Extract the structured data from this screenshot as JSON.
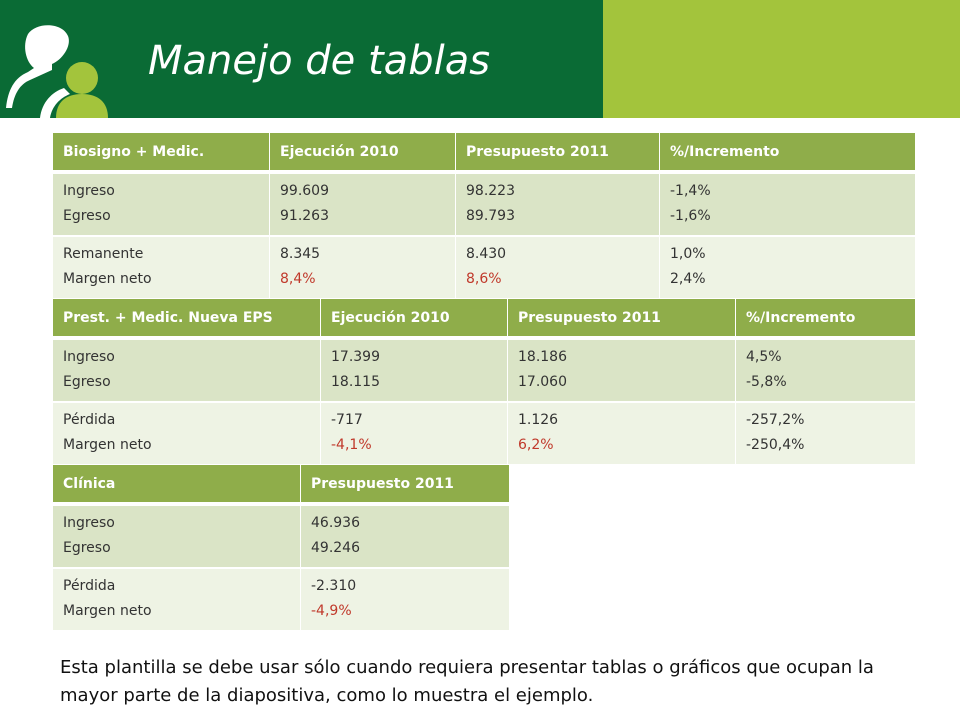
{
  "slide": {
    "title": "Manejo de tablas",
    "footer": "Esta plantilla se debe usar sólo cuando requiera presentar tablas o gráficos que ocupan la mayor parte de la diapositiva, como lo muestra el ejemplo."
  },
  "colors": {
    "header_green": "#0a6b35",
    "accent_green": "#a3c43c",
    "table_header": "#8fad4a",
    "negative_red": "#c0392b"
  },
  "icons": {
    "logo": "people-silhouette-icon"
  },
  "table1": {
    "headers": [
      "Biosigno + Medic.",
      "Ejecución 2010",
      "Presupuesto 2011",
      "%/Incremento"
    ],
    "rows": [
      [
        [
          "Ingreso",
          "Egreso"
        ],
        [
          "99.609",
          "91.263"
        ],
        [
          "98.223",
          "89.793"
        ],
        [
          "-1,4%",
          "-1,6%"
        ]
      ],
      [
        [
          "Remanente",
          "Margen neto"
        ],
        [
          "8.345",
          "8,4%"
        ],
        [
          "8.430",
          "8,6%"
        ],
        [
          "1,0%",
          "2,4%"
        ]
      ]
    ]
  },
  "table2": {
    "headers": [
      "Prest. + Medic. Nueva EPS",
      "Ejecución 2010",
      "Presupuesto 2011",
      "%/Incremento"
    ],
    "rows": [
      [
        [
          "Ingreso",
          "Egreso"
        ],
        [
          "17.399",
          "18.115"
        ],
        [
          "18.186",
          "17.060"
        ],
        [
          "4,5%",
          "-5,8%"
        ]
      ],
      [
        [
          "Pérdida",
          "Margen neto"
        ],
        [
          "-717",
          "-4,1%"
        ],
        [
          "1.126",
          "6,2%"
        ],
        [
          "-257,2%",
          "-250,4%"
        ]
      ]
    ]
  },
  "table3": {
    "headers": [
      "Clínica",
      "Presupuesto 2011"
    ],
    "rows": [
      [
        [
          "Ingreso",
          "Egreso"
        ],
        [
          "46.936",
          "49.246"
        ]
      ],
      [
        [
          "Pérdida",
          "Margen neto"
        ],
        [
          "-2.310",
          "-4,9%"
        ]
      ]
    ]
  }
}
